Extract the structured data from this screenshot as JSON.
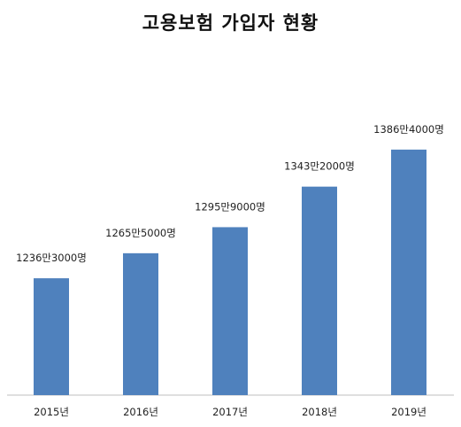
{
  "chart_data": {
    "type": "bar",
    "title": "고용보험 가입자 현황",
    "categories": [
      "2015년",
      "2016년",
      "2017년",
      "2018년",
      "2019년"
    ],
    "values": [
      12363000,
      12655000,
      12959000,
      13432000,
      13864000
    ],
    "data_labels": [
      "1236만3000명",
      "1265만5000명",
      "1295만9000명",
      "1343만2000명",
      "1386만4000명"
    ],
    "xlabel": "",
    "ylabel": "",
    "ylim": [
      11000000,
      14400000
    ],
    "grid": false,
    "legend": "none",
    "bar_color": "#4f81bd",
    "axis_color": "#bfbfbf"
  }
}
